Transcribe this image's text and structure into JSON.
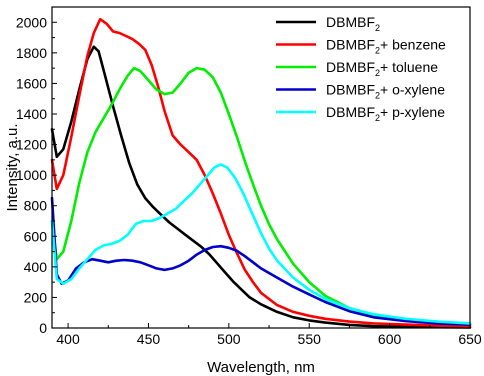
{
  "chart_data": {
    "type": "line",
    "title": "",
    "xlabel": "Wavelength, nm",
    "ylabel": "Intensity, a.u.",
    "xlim": [
      390,
      650
    ],
    "ylim": [
      0,
      2100
    ],
    "xticks": [
      "400",
      "450",
      "500",
      "550",
      "600",
      "650"
    ],
    "xtick_values": [
      400,
      450,
      500,
      550,
      600,
      650
    ],
    "yticks": [
      "0",
      "200",
      "400",
      "600",
      "800",
      "1000",
      "1200",
      "1400",
      "1600",
      "1800",
      "2000"
    ],
    "ytick_values": [
      0,
      200,
      400,
      600,
      800,
      1000,
      1200,
      1400,
      1600,
      1800,
      2000
    ],
    "legend_position": "top-right",
    "grid": false,
    "series": [
      {
        "name": "DBMBF",
        "name_sub": "2",
        "name_suffix": "",
        "color": "#000000",
        "points": [
          [
            390,
            1300
          ],
          [
            393,
            1120
          ],
          [
            397,
            1170
          ],
          [
            402,
            1350
          ],
          [
            407,
            1560
          ],
          [
            412,
            1760
          ],
          [
            416,
            1840
          ],
          [
            419,
            1810
          ],
          [
            423,
            1650
          ],
          [
            428,
            1450
          ],
          [
            433,
            1260
          ],
          [
            438,
            1080
          ],
          [
            443,
            940
          ],
          [
            448,
            850
          ],
          [
            453,
            790
          ],
          [
            458,
            740
          ],
          [
            463,
            690
          ],
          [
            468,
            650
          ],
          [
            473,
            610
          ],
          [
            478,
            570
          ],
          [
            483,
            530
          ],
          [
            488,
            480
          ],
          [
            493,
            420
          ],
          [
            498,
            360
          ],
          [
            503,
            300
          ],
          [
            508,
            250
          ],
          [
            513,
            200
          ],
          [
            520,
            155
          ],
          [
            530,
            105
          ],
          [
            540,
            70
          ],
          [
            550,
            50
          ],
          [
            560,
            35
          ],
          [
            575,
            20
          ],
          [
            590,
            12
          ],
          [
            610,
            8
          ],
          [
            630,
            5
          ],
          [
            650,
            3
          ]
        ]
      },
      {
        "name": "DBMBF",
        "name_sub": "2",
        "name_suffix": "+ benzene",
        "color": "#ff0000",
        "points": [
          [
            390,
            1100
          ],
          [
            393,
            910
          ],
          [
            397,
            1000
          ],
          [
            402,
            1250
          ],
          [
            407,
            1520
          ],
          [
            412,
            1780
          ],
          [
            416,
            1930
          ],
          [
            420,
            2020
          ],
          [
            424,
            1990
          ],
          [
            428,
            1940
          ],
          [
            432,
            1930
          ],
          [
            436,
            1910
          ],
          [
            440,
            1890
          ],
          [
            444,
            1860
          ],
          [
            448,
            1820
          ],
          [
            452,
            1720
          ],
          [
            456,
            1580
          ],
          [
            460,
            1420
          ],
          [
            465,
            1260
          ],
          [
            470,
            1200
          ],
          [
            475,
            1150
          ],
          [
            480,
            1100
          ],
          [
            485,
            1000
          ],
          [
            490,
            880
          ],
          [
            495,
            750
          ],
          [
            500,
            610
          ],
          [
            505,
            490
          ],
          [
            510,
            380
          ],
          [
            515,
            300
          ],
          [
            520,
            230
          ],
          [
            530,
            150
          ],
          [
            540,
            105
          ],
          [
            550,
            80
          ],
          [
            560,
            60
          ],
          [
            575,
            42
          ],
          [
            590,
            30
          ],
          [
            610,
            22
          ],
          [
            630,
            16
          ],
          [
            650,
            12
          ]
        ]
      },
      {
        "name": "DBMBF",
        "name_sub": "2",
        "name_suffix": "+ toluene",
        "color": "#00ee00",
        "points": [
          [
            390,
            700
          ],
          [
            393,
            450
          ],
          [
            397,
            500
          ],
          [
            402,
            700
          ],
          [
            407,
            950
          ],
          [
            412,
            1150
          ],
          [
            417,
            1280
          ],
          [
            422,
            1370
          ],
          [
            427,
            1460
          ],
          [
            432,
            1560
          ],
          [
            437,
            1650
          ],
          [
            441,
            1700
          ],
          [
            445,
            1680
          ],
          [
            450,
            1620
          ],
          [
            455,
            1560
          ],
          [
            460,
            1530
          ],
          [
            465,
            1540
          ],
          [
            470,
            1600
          ],
          [
            475,
            1670
          ],
          [
            480,
            1700
          ],
          [
            485,
            1690
          ],
          [
            490,
            1640
          ],
          [
            495,
            1540
          ],
          [
            500,
            1400
          ],
          [
            505,
            1250
          ],
          [
            510,
            1090
          ],
          [
            515,
            940
          ],
          [
            520,
            800
          ],
          [
            525,
            680
          ],
          [
            530,
            580
          ],
          [
            540,
            420
          ],
          [
            550,
            300
          ],
          [
            560,
            210
          ],
          [
            575,
            130
          ],
          [
            590,
            85
          ],
          [
            610,
            55
          ],
          [
            630,
            38
          ],
          [
            650,
            28
          ]
        ]
      },
      {
        "name": "DBMBF",
        "name_sub": "2",
        "name_suffix": "+ o-xylene",
        "color": "#0000cc",
        "points": [
          [
            390,
            850
          ],
          [
            393,
            350
          ],
          [
            396,
            290
          ],
          [
            400,
            310
          ],
          [
            405,
            390
          ],
          [
            410,
            430
          ],
          [
            415,
            450
          ],
          [
            420,
            440
          ],
          [
            425,
            430
          ],
          [
            430,
            440
          ],
          [
            435,
            445
          ],
          [
            440,
            440
          ],
          [
            445,
            430
          ],
          [
            450,
            410
          ],
          [
            455,
            390
          ],
          [
            460,
            380
          ],
          [
            465,
            390
          ],
          [
            470,
            410
          ],
          [
            475,
            440
          ],
          [
            480,
            480
          ],
          [
            485,
            510
          ],
          [
            490,
            530
          ],
          [
            495,
            535
          ],
          [
            500,
            525
          ],
          [
            505,
            505
          ],
          [
            510,
            470
          ],
          [
            515,
            430
          ],
          [
            520,
            390
          ],
          [
            530,
            330
          ],
          [
            540,
            270
          ],
          [
            550,
            220
          ],
          [
            560,
            170
          ],
          [
            575,
            110
          ],
          [
            590,
            70
          ],
          [
            610,
            45
          ],
          [
            630,
            30
          ],
          [
            650,
            22
          ]
        ]
      },
      {
        "name": "DBMBF",
        "name_sub": "2",
        "name_suffix": "+ p-xylene",
        "color": "#00ffff",
        "points": [
          [
            390,
            700
          ],
          [
            393,
            320
          ],
          [
            397,
            290
          ],
          [
            402,
            320
          ],
          [
            407,
            390
          ],
          [
            412,
            450
          ],
          [
            417,
            510
          ],
          [
            422,
            540
          ],
          [
            427,
            550
          ],
          [
            432,
            570
          ],
          [
            437,
            610
          ],
          [
            442,
            680
          ],
          [
            447,
            700
          ],
          [
            452,
            700
          ],
          [
            457,
            720
          ],
          [
            462,
            750
          ],
          [
            467,
            780
          ],
          [
            472,
            830
          ],
          [
            477,
            880
          ],
          [
            482,
            940
          ],
          [
            487,
            1000
          ],
          [
            491,
            1050
          ],
          [
            495,
            1070
          ],
          [
            499,
            1050
          ],
          [
            504,
            980
          ],
          [
            509,
            880
          ],
          [
            514,
            760
          ],
          [
            520,
            620
          ],
          [
            525,
            520
          ],
          [
            530,
            440
          ],
          [
            540,
            330
          ],
          [
            550,
            250
          ],
          [
            560,
            190
          ],
          [
            575,
            130
          ],
          [
            590,
            90
          ],
          [
            610,
            60
          ],
          [
            630,
            42
          ],
          [
            650,
            30
          ]
        ]
      }
    ]
  }
}
